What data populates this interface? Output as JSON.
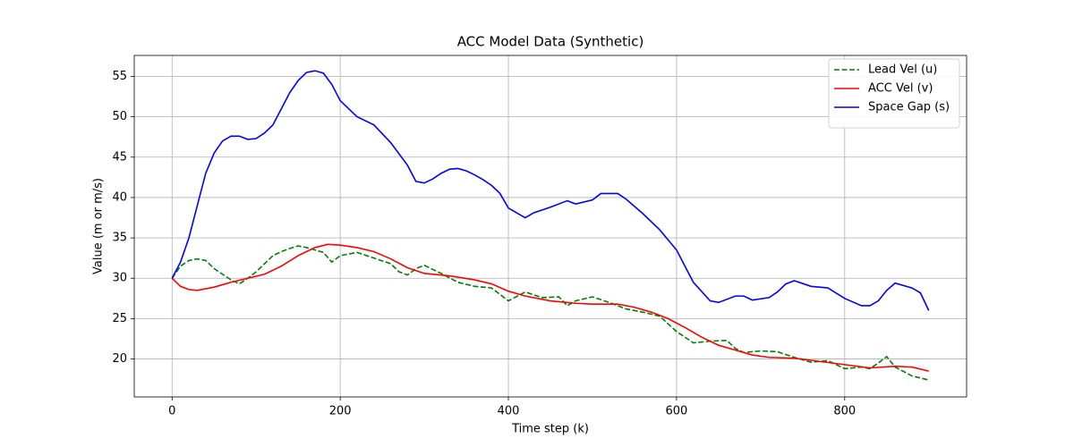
{
  "chart_data": {
    "type": "line",
    "title": "ACC Model Data (Synthetic)",
    "x_label": "Time step (k)",
    "y_label": "Value (m or m/s)",
    "xlim": [
      -45,
      945
    ],
    "ylim": [
      15.3,
      57.6
    ],
    "xticks": [
      0,
      200,
      400,
      600,
      800
    ],
    "yticks": [
      20,
      25,
      30,
      35,
      40,
      45,
      50,
      55
    ],
    "grid": true,
    "legend": "upper right",
    "series": [
      {
        "name": "Lead Vel (u)",
        "color": "#008000",
        "dash": true,
        "x": [
          0,
          10,
          20,
          30,
          40,
          50,
          60,
          70,
          80,
          90,
          100,
          110,
          120,
          130,
          140,
          150,
          160,
          170,
          180,
          190,
          200,
          220,
          240,
          260,
          270,
          280,
          290,
          300,
          320,
          340,
          360,
          380,
          400,
          420,
          440,
          460,
          470,
          480,
          500,
          520,
          540,
          560,
          580,
          600,
          620,
          640,
          660,
          670,
          680,
          700,
          720,
          740,
          760,
          780,
          800,
          820,
          830,
          840,
          850,
          860,
          880,
          900
        ],
        "values": [
          30,
          31.5,
          32.2,
          32.4,
          32.2,
          31.2,
          30.5,
          29.8,
          29.3,
          30,
          30.8,
          31.8,
          32.8,
          33.3,
          33.7,
          34,
          33.8,
          33.5,
          33.2,
          32,
          32.8,
          33.2,
          32.5,
          31.8,
          30.8,
          30.4,
          31.2,
          31.6,
          30.6,
          29.5,
          29,
          28.8,
          27.2,
          28.3,
          27.6,
          27.7,
          26.6,
          27.2,
          27.7,
          27,
          26.2,
          25.8,
          25.3,
          23.4,
          22,
          22.2,
          22.3,
          21.3,
          20.8,
          21,
          20.9,
          20.2,
          19.6,
          19.8,
          18.8,
          19,
          18.8,
          19.5,
          20.3,
          19,
          17.9,
          17.4
        ]
      },
      {
        "name": "ACC Vel (v)",
        "color": "#ff0000",
        "dash": false,
        "x": [
          0,
          10,
          20,
          30,
          50,
          70,
          90,
          110,
          130,
          150,
          170,
          185,
          200,
          220,
          240,
          260,
          280,
          300,
          330,
          360,
          380,
          400,
          420,
          450,
          480,
          500,
          530,
          550,
          570,
          590,
          610,
          630,
          650,
          670,
          690,
          710,
          740,
          770,
          800,
          830,
          860,
          880,
          900
        ],
        "values": [
          30,
          29,
          28.6,
          28.5,
          28.9,
          29.5,
          30,
          30.5,
          31.5,
          32.8,
          33.8,
          34.2,
          34.1,
          33.8,
          33.3,
          32.4,
          31.3,
          30.6,
          30.3,
          29.8,
          29.3,
          28.4,
          27.8,
          27.2,
          26.9,
          26.8,
          26.8,
          26.4,
          25.8,
          25,
          23.9,
          22.7,
          21.7,
          21.1,
          20.5,
          20.2,
          20.1,
          19.7,
          19.3,
          18.9,
          19.1,
          19,
          18.5
        ]
      },
      {
        "name": "Space Gap (s)",
        "color": "#0000ff",
        "dash": false,
        "x": [
          0,
          10,
          20,
          30,
          40,
          50,
          60,
          70,
          80,
          90,
          100,
          110,
          120,
          130,
          140,
          150,
          160,
          170,
          180,
          190,
          200,
          210,
          220,
          240,
          260,
          280,
          290,
          300,
          310,
          320,
          330,
          340,
          350,
          360,
          370,
          380,
          390,
          400,
          420,
          430,
          450,
          470,
          480,
          500,
          510,
          530,
          540,
          560,
          580,
          600,
          610,
          620,
          640,
          650,
          670,
          680,
          690,
          710,
          720,
          730,
          740,
          760,
          780,
          800,
          820,
          830,
          840,
          850,
          860,
          880,
          890,
          900
        ],
        "values": [
          30,
          32,
          35,
          39,
          43,
          45.5,
          47,
          47.6,
          47.6,
          47.2,
          47.3,
          48,
          49,
          51,
          53,
          54.5,
          55.5,
          55.7,
          55.4,
          54,
          52,
          51,
          50,
          49,
          46.8,
          44,
          42,
          41.8,
          42.3,
          43,
          43.5,
          43.6,
          43.3,
          42.8,
          42.2,
          41.5,
          40.5,
          38.7,
          37.5,
          38.1,
          38.8,
          39.6,
          39.2,
          39.7,
          40.5,
          40.5,
          39.8,
          38,
          36,
          33.5,
          31.5,
          29.5,
          27.2,
          27,
          27.8,
          27.8,
          27.3,
          27.6,
          28.3,
          29.3,
          29.7,
          29,
          28.8,
          27.5,
          26.6,
          26.6,
          27.2,
          28.5,
          29.4,
          28.8,
          28.2,
          26
        ]
      }
    ]
  }
}
